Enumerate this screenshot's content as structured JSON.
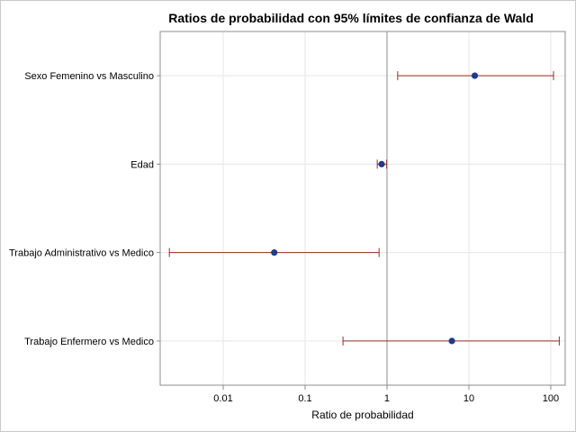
{
  "chart_data": {
    "type": "scatter",
    "subtype": "forest-plot",
    "title": "Ratios de probabilidad con 95% límites de confianza de Wald",
    "xlabel": "Ratio de probabilidad",
    "ylabel": "",
    "x_scale": "log",
    "xlim": [
      0.0017,
      150
    ],
    "xticks": [
      0.01,
      0.1,
      1,
      10,
      100
    ],
    "xtick_labels": [
      "0.01",
      "0.1",
      "1",
      "10",
      "100"
    ],
    "reference_line": 1,
    "grid": true,
    "categories": [
      "Sexo Femenino vs Masculino",
      "Edad",
      "Trabajo Administrativo vs Medico",
      "Trabajo Enfermero vs Medico"
    ],
    "estimates": [
      11.8,
      0.86,
      0.042,
      6.2
    ],
    "lower": [
      1.35,
      0.76,
      0.0022,
      0.29
    ],
    "upper": [
      108,
      0.99,
      0.8,
      127
    ],
    "colors": {
      "point": "#1f3a93",
      "interval": "#9b2c1b",
      "reference": "#8c8c8c",
      "grid": "#e6e6e6",
      "frame": "#8c8c8c"
    }
  }
}
